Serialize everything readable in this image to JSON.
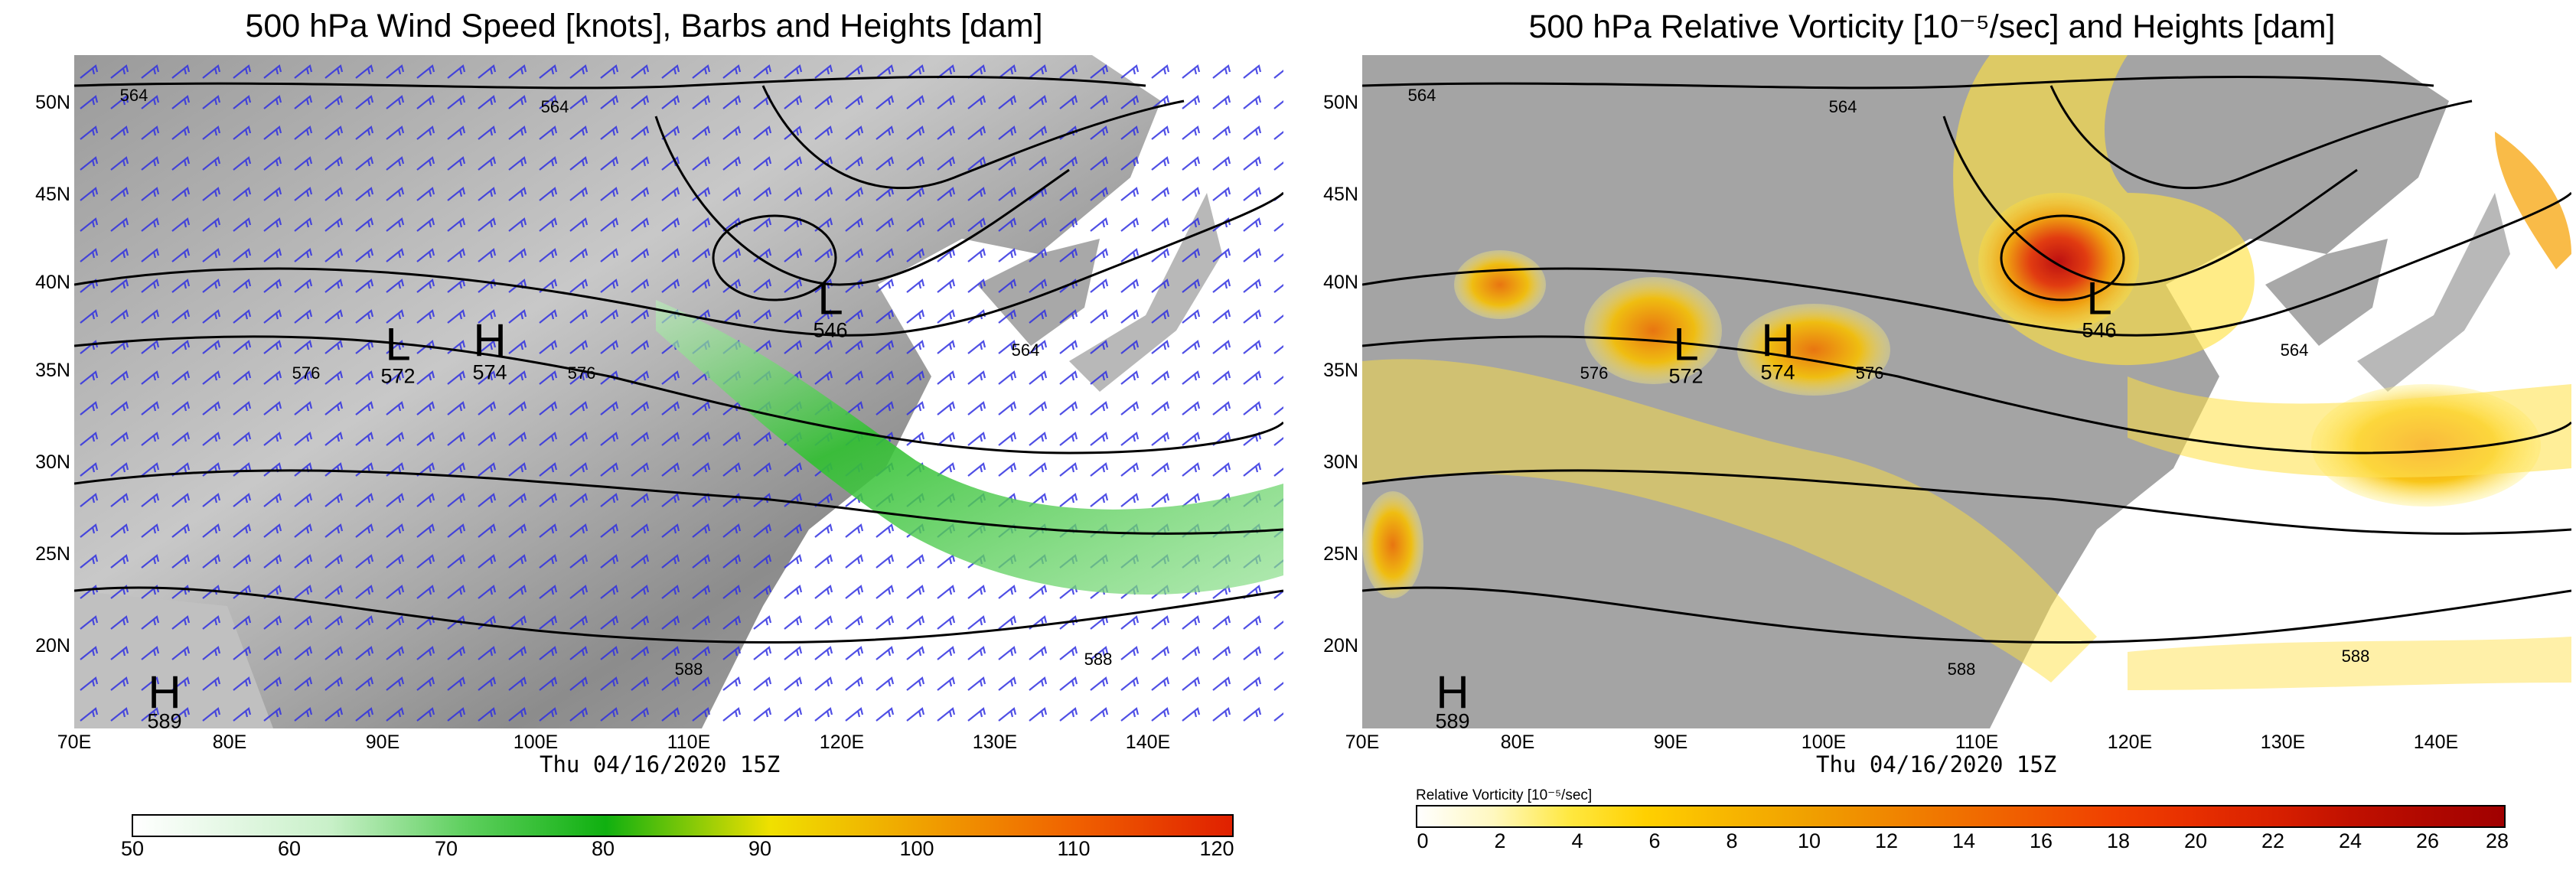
{
  "panels": [
    {
      "title": "500 hPa Wind Speed [knots], Barbs and Heights [dam]",
      "timestamp": "Thu 04/16/2020 15Z",
      "lat_labels": [
        "50N",
        "45N",
        "40N",
        "35N",
        "30N",
        "25N",
        "20N"
      ],
      "lon_labels": [
        "70E",
        "80E",
        "90E",
        "100E",
        "110E",
        "120E",
        "130E",
        "140E"
      ],
      "colorbar": {
        "title": "",
        "ticks": [
          "50",
          "60",
          "70",
          "80",
          "90",
          "100",
          "110",
          "120"
        ],
        "colors": [
          "#ffffff",
          "#c8f0c8",
          "#60d060",
          "#10b010",
          "#f0e000",
          "#f0a000",
          "#f06000",
          "#e02000"
        ]
      },
      "markers": [
        {
          "letter": "L",
          "value": "572"
        },
        {
          "letter": "H",
          "value": "574"
        },
        {
          "letter": "L",
          "value": "546"
        },
        {
          "letter": "H",
          "value": "589"
        }
      ],
      "contour_labels": [
        "564",
        "564",
        "576",
        "576",
        "564",
        "588",
        "588"
      ]
    },
    {
      "title": "500 hPa Relative Vorticity [10⁻⁵/sec] and Heights [dam]",
      "timestamp": "Thu 04/16/2020 15Z",
      "lat_labels": [
        "50N",
        "45N",
        "40N",
        "35N",
        "30N",
        "25N",
        "20N"
      ],
      "lon_labels": [
        "70E",
        "80E",
        "90E",
        "100E",
        "110E",
        "120E",
        "130E",
        "140E"
      ],
      "colorbar": {
        "title": "Relative Vorticity [10⁻⁵/sec]",
        "ticks": [
          "0",
          "2",
          "4",
          "6",
          "8",
          "10",
          "12",
          "14",
          "16",
          "18",
          "20",
          "22",
          "24",
          "26",
          "28"
        ],
        "colors": [
          "#ffffff",
          "#fff8c0",
          "#ffe840",
          "#ffd000",
          "#f8b800",
          "#f0a000",
          "#f08800",
          "#f07000",
          "#f05800",
          "#f04000",
          "#e83000",
          "#d82000",
          "#c01000",
          "#a00000"
        ]
      },
      "markers": [
        {
          "letter": "L",
          "value": "572"
        },
        {
          "letter": "H",
          "value": "574"
        },
        {
          "letter": "L",
          "value": "546"
        },
        {
          "letter": "H",
          "value": "589"
        }
      ],
      "contour_labels": [
        "564",
        "564",
        "576",
        "576",
        "564",
        "588",
        "588"
      ]
    }
  ]
}
